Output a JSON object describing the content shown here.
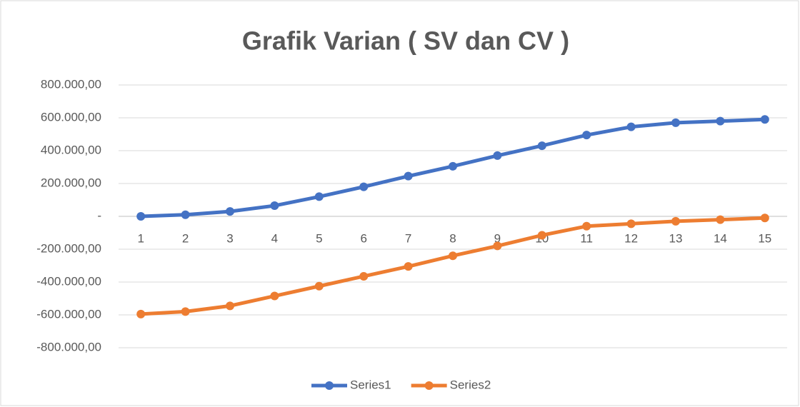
{
  "chart_data": {
    "type": "line",
    "title": "Grafik Varian  ( SV dan CV )",
    "categories": [
      "1",
      "2",
      "3",
      "4",
      "5",
      "6",
      "7",
      "8",
      "9",
      "10",
      "11",
      "12",
      "13",
      "14",
      "15"
    ],
    "series": [
      {
        "name": "Series1",
        "color": "#4472c4",
        "values": [
          0,
          10000,
          30000,
          65000,
          120000,
          180000,
          245000,
          305000,
          370000,
          430000,
          495000,
          545000,
          570000,
          580000,
          590000
        ]
      },
      {
        "name": "Series2",
        "color": "#ed7d31",
        "values": [
          -595000,
          -580000,
          -545000,
          -485000,
          -425000,
          -365000,
          -305000,
          -240000,
          -180000,
          -115000,
          -60000,
          -45000,
          -30000,
          -20000,
          -10000
        ]
      }
    ],
    "ylim": [
      -800000,
      800000
    ],
    "yticks": [
      {
        "value": -800000,
        "label": "-800.000,00"
      },
      {
        "value": -600000,
        "label": "-600.000,00"
      },
      {
        "value": -400000,
        "label": "-400.000,00"
      },
      {
        "value": -200000,
        "label": "-200.000,00"
      },
      {
        "value": 0,
        "label": "-"
      },
      {
        "value": 200000,
        "label": "200.000,00"
      },
      {
        "value": 400000,
        "label": "400.000,00"
      },
      {
        "value": 600000,
        "label": "600.000,00"
      },
      {
        "value": 800000,
        "label": "800.000,00"
      }
    ],
    "grid": true,
    "legend": "bottom"
  }
}
